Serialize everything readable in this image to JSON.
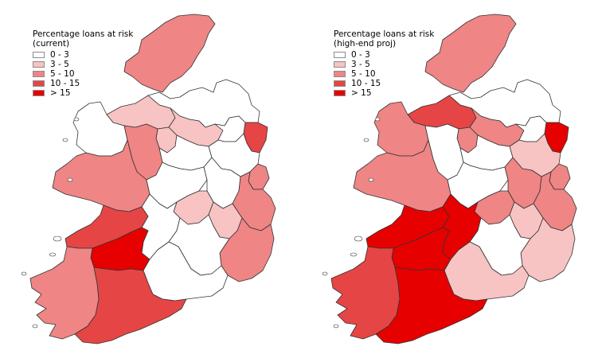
{
  "maps": [
    {
      "legend": {
        "title": "Percentage loans at risk",
        "subtitle": "(current)",
        "items": [
          {
            "label": "0 - 3",
            "color": "#ffffff"
          },
          {
            "label": "3 - 5",
            "color": "#f7c3c3"
          },
          {
            "label": "5 - 10",
            "color": "#ef8585"
          },
          {
            "label": "10 - 15",
            "color": "#e64545"
          },
          {
            "label": "> 15",
            "color": "#e60000"
          }
        ]
      },
      "regions": {
        "donegal": "#ef8585",
        "sligo-leitrim": "#f7c3c3",
        "cavan": "#f7c3c3",
        "monaghan": "#ffffff",
        "louth": "#e64545",
        "mayo": "#ffffff",
        "roscommon": "#ef8585",
        "longford": "#f7c3c3",
        "meath": "#ffffff",
        "dublin": "#ef8585",
        "galway": "#ef8585",
        "westmeath": "#ffffff",
        "offaly": "#ffffff",
        "kildare": "#ffffff",
        "wicklow": "#ef8585",
        "clare": "#e64545",
        "tipperary-n": "#ffffff",
        "laois": "#f7c3c3",
        "carlow": "#f7c3c3",
        "wexford": "#ef8585",
        "limerick": "#e60000",
        "kerry": "#ef8585",
        "cork": "#e64545",
        "waterford": "#ffffff",
        "kilkenny": "#ffffff",
        "northern": "#ffffff"
      }
    },
    {
      "legend": {
        "title": "Percentage loans at risk",
        "subtitle": "(high-end proj)",
        "items": [
          {
            "label": "0 - 3",
            "color": "#ffffff"
          },
          {
            "label": "3 - 5",
            "color": "#f7c3c3"
          },
          {
            "label": "5 - 10",
            "color": "#ef8585"
          },
          {
            "label": "10 - 15",
            "color": "#e64545"
          },
          {
            "label": "> 15",
            "color": "#e60000"
          }
        ]
      },
      "regions": {
        "donegal": "#ef8585",
        "sligo-leitrim": "#e64545",
        "cavan": "#ef8585",
        "monaghan": "#ffffff",
        "louth": "#e60000",
        "mayo": "#ef8585",
        "roscommon": "#ffffff",
        "longford": "#ef8585",
        "meath": "#f7c3c3",
        "dublin": "#ef8585",
        "galway": "#ef8585",
        "westmeath": "#ffffff",
        "offaly": "#ffffff",
        "kildare": "#ef8585",
        "wicklow": "#ef8585",
        "clare": "#e60000",
        "tipperary-n": "#e60000",
        "laois": "#ef8585",
        "carlow": "#f7c3c3",
        "wexford": "#f7c3c3",
        "limerick": "#e60000",
        "kerry": "#e64545",
        "cork": "#e60000",
        "waterford": "#f7c3c3",
        "kilkenny": "#ffffff",
        "northern": "#ffffff"
      }
    }
  ]
}
